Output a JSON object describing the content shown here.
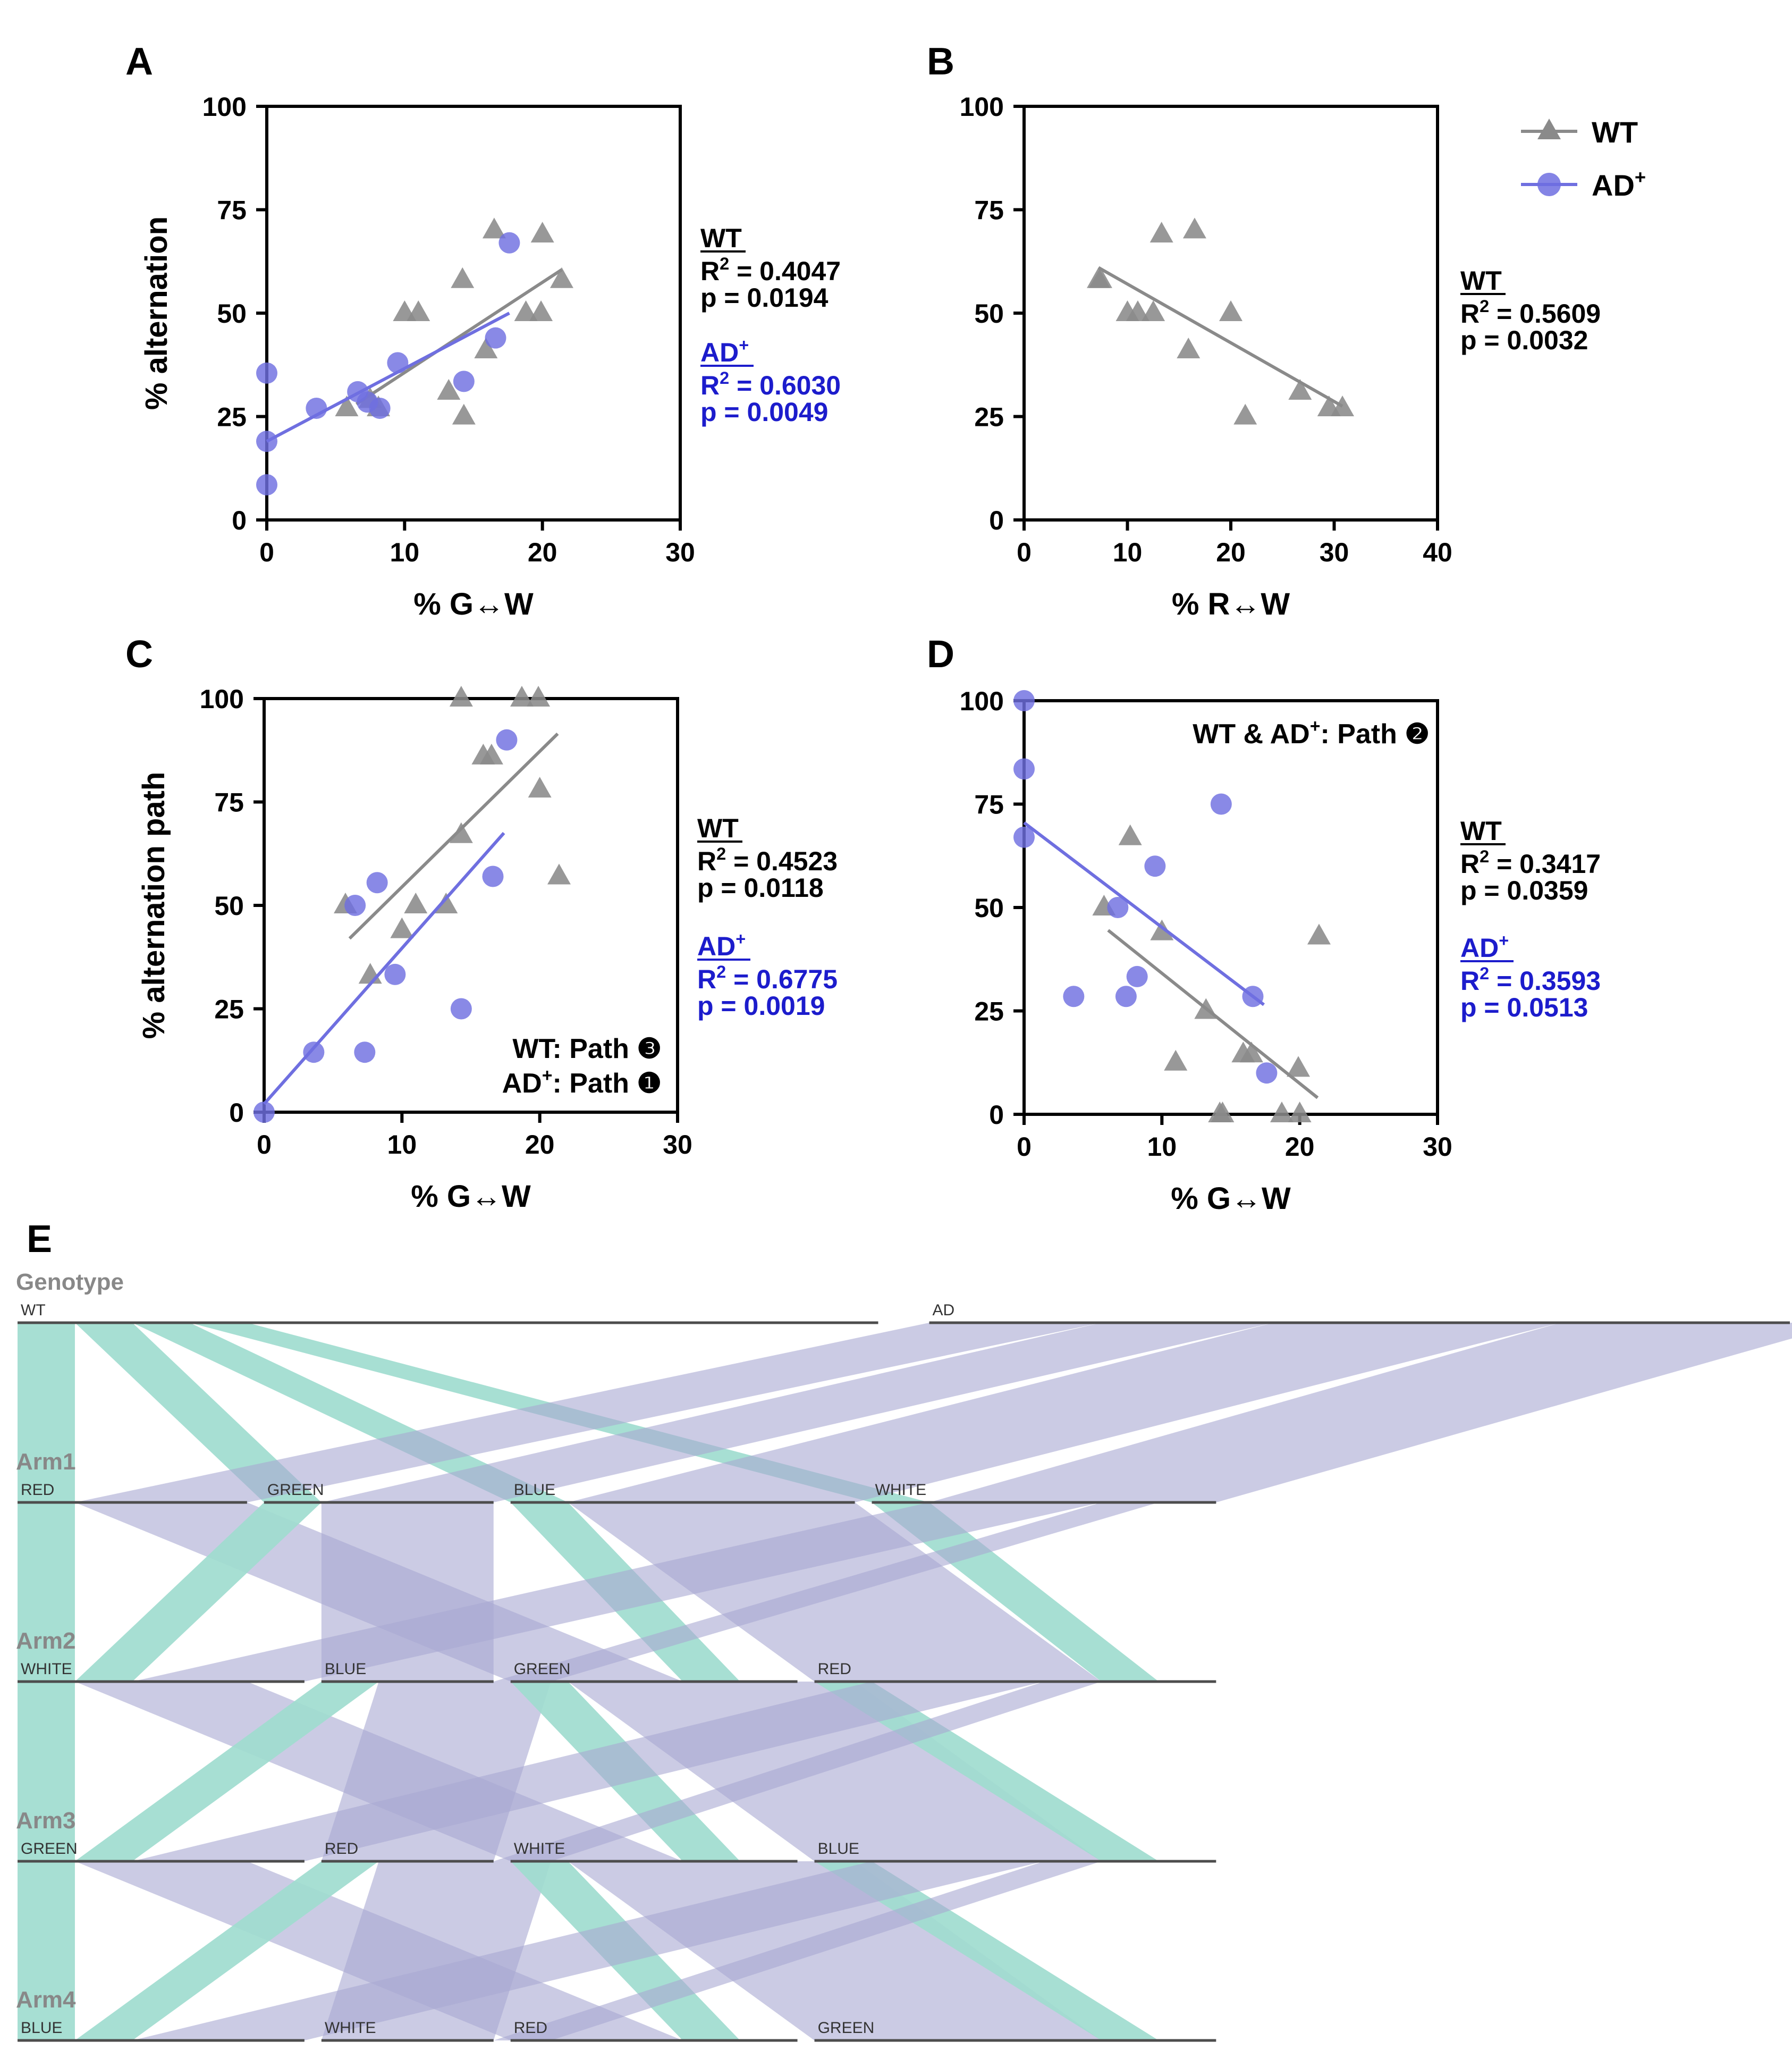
{
  "colors": {
    "wt": "#8a8a8a",
    "ad": "#6f6fe0",
    "ad_text": "#1c1ccc",
    "teal": "#9fdccf",
    "lavender": "#c6c4df",
    "lavender_flow": "#a8a8d2",
    "node_line": "#4d4d4d",
    "label_gray": "#888888"
  },
  "legend": {
    "wt": "WT",
    "ad_base": "AD",
    "ad_sup": "+"
  },
  "chart_data": [
    {
      "panel": "A",
      "type": "scatter",
      "xlabel": "% G↔W",
      "ylabel": "% alternation",
      "xlim": [
        0,
        30
      ],
      "ylim": [
        0,
        100
      ],
      "xticks": [
        0,
        10,
        20,
        30
      ],
      "yticks": [
        0,
        25,
        50,
        75,
        100
      ],
      "series": [
        {
          "name": "WT",
          "marker": "triangle",
          "x": [
            5.8,
            7.5,
            8.1,
            10.0,
            11.0,
            13.2,
            14.2,
            14.3,
            15.9,
            16.5,
            18.8,
            19.9,
            20.0,
            21.4
          ],
          "y": [
            27,
            29,
            27,
            50,
            50,
            31,
            58,
            25,
            41,
            70,
            50,
            50,
            69,
            58
          ],
          "fit": [
            [
              6.5,
              28
            ],
            [
              21.4,
              60.5
            ]
          ]
        },
        {
          "name": "AD+",
          "marker": "circle",
          "x": [
            0,
            0,
            0,
            3.6,
            6.6,
            7.3,
            8.2,
            9.5,
            14.3,
            16.6,
            17.6
          ],
          "y": [
            35.5,
            19,
            8.5,
            27,
            31,
            28.5,
            27,
            38,
            33.5,
            44,
            67
          ],
          "fit": [
            [
              0,
              19
            ],
            [
              17.6,
              50
            ]
          ]
        }
      ],
      "stats": [
        {
          "name": "WT",
          "r2": "0.4047",
          "p": "0.0194"
        },
        {
          "name": "AD+",
          "r2": "0.6030",
          "p": "0.0049"
        }
      ]
    },
    {
      "panel": "B",
      "type": "scatter",
      "xlabel": "% R↔W",
      "ylabel": "",
      "xlim": [
        0,
        40
      ],
      "ylim": [
        0,
        100
      ],
      "xticks": [
        0,
        10,
        20,
        30,
        40
      ],
      "yticks": [
        0,
        25,
        50,
        75,
        100
      ],
      "series": [
        {
          "name": "WT",
          "marker": "triangle",
          "x": [
            7.2,
            7.4,
            10.0,
            11.0,
            12.5,
            13.3,
            16.5,
            15.9,
            20.0,
            21.4,
            26.7,
            29.5,
            30.8
          ],
          "y": [
            58,
            58,
            50,
            50,
            50,
            69,
            70,
            41,
            50,
            25,
            31,
            27,
            27
          ],
          "fit": [
            [
              7.2,
              61
            ],
            [
              30.8,
              27.5
            ]
          ]
        }
      ],
      "stats": [
        {
          "name": "WT",
          "r2": "0.5609",
          "p": "0.0032"
        }
      ]
    },
    {
      "panel": "C",
      "type": "scatter",
      "xlabel": "% G↔W",
      "ylabel": "% alternation path",
      "xlim": [
        0,
        30
      ],
      "ylim": [
        0,
        100
      ],
      "xticks": [
        0,
        10,
        20,
        30
      ],
      "yticks": [
        0,
        25,
        50,
        75,
        100
      ],
      "annotations": [
        "WT: Path ❸",
        "AD+: Path ❶"
      ],
      "series": [
        {
          "name": "WT",
          "marker": "triangle",
          "x": [
            5.9,
            7.7,
            10.0,
            11.0,
            13.2,
            14.3,
            14.3,
            15.9,
            16.5,
            18.7,
            19.9,
            20.0,
            21.4
          ],
          "y": [
            50,
            33,
            44,
            50,
            50,
            67,
            100,
            86,
            86,
            100,
            100,
            78,
            57
          ],
          "fit": [
            [
              6.2,
              42
            ],
            [
              21.3,
              91.5
            ]
          ]
        },
        {
          "name": "AD+",
          "marker": "circle",
          "x": [
            0,
            3.6,
            6.6,
            7.3,
            8.2,
            9.5,
            14.3,
            16.6,
            17.6
          ],
          "y": [
            0,
            14.5,
            50,
            14.5,
            55.5,
            33.3,
            25,
            57,
            90
          ],
          "fit": [
            [
              0,
              2
            ],
            [
              17.4,
              67.5
            ]
          ]
        }
      ],
      "stats": [
        {
          "name": "WT",
          "r2": "0.4523",
          "p": "0.0118"
        },
        {
          "name": "AD+",
          "r2": "0.6775",
          "p": "0.0019"
        }
      ]
    },
    {
      "panel": "D",
      "type": "scatter",
      "xlabel": "% G↔W",
      "ylabel": "",
      "xlim": [
        0,
        30
      ],
      "ylim": [
        0,
        100
      ],
      "xticks": [
        0,
        10,
        20,
        30
      ],
      "yticks": [
        0,
        25,
        50,
        75,
        100
      ],
      "annotations": [
        "WT & AD+: Path ❷"
      ],
      "series": [
        {
          "name": "WT",
          "marker": "triangle",
          "x": [
            5.8,
            7.7,
            10.0,
            11.0,
            13.2,
            14.2,
            14.4,
            15.9,
            16.5,
            18.7,
            19.9,
            20.0,
            21.4
          ],
          "y": [
            50,
            67,
            44,
            12.5,
            25,
            0,
            0,
            14.5,
            14.5,
            0,
            11,
            0,
            43
          ],
          "fit": [
            [
              6.1,
              44.5
            ],
            [
              21.3,
              4
            ]
          ]
        },
        {
          "name": "AD+",
          "marker": "circle",
          "x": [
            0,
            0,
            0,
            3.6,
            6.8,
            7.4,
            8.2,
            9.5,
            14.3,
            16.6,
            17.6
          ],
          "y": [
            100,
            83.5,
            67,
            28.5,
            50,
            28.5,
            33.3,
            60,
            75,
            28.5,
            10
          ],
          "fit": [
            [
              0,
              70.5
            ],
            [
              17.4,
              26.5
            ]
          ]
        }
      ],
      "stats": [
        {
          "name": "WT",
          "r2": "0.3417",
          "p": "0.0359"
        },
        {
          "name": "AD+",
          "r2": "0.3593",
          "p": "0.0513"
        }
      ]
    }
  ],
  "sankey": {
    "panel": "E",
    "levels": [
      {
        "name": "Genotype",
        "nodes": [
          {
            "label": "WT",
            "size": 15
          },
          {
            "label": "AD",
            "size": 15
          }
        ]
      },
      {
        "name": "Arm1",
        "nodes": [
          {
            "label": "RED",
            "size": 4
          },
          {
            "label": "GREEN",
            "size": 4
          },
          {
            "label": "BLUE",
            "size": 6
          },
          {
            "label": "WHITE",
            "size": 6
          }
        ]
      },
      {
        "name": "Arm2",
        "nodes": [
          {
            "label": "WHITE",
            "size": 5
          },
          {
            "label": "BLUE",
            "size": 3
          },
          {
            "label": "GREEN",
            "size": 5
          },
          {
            "label": "RED",
            "size": 7
          }
        ]
      },
      {
        "name": "Arm3",
        "nodes": [
          {
            "label": "GREEN",
            "size": 5
          },
          {
            "label": "RED",
            "size": 3
          },
          {
            "label": "WHITE",
            "size": 5
          },
          {
            "label": "BLUE",
            "size": 7
          }
        ]
      },
      {
        "name": "Arm4",
        "nodes": [
          {
            "label": "BLUE",
            "size": 5
          },
          {
            "label": "WHITE",
            "size": 3
          },
          {
            "label": "RED",
            "size": 5
          },
          {
            "label": "GREEN",
            "size": 7
          }
        ]
      }
    ],
    "flows": [
      [
        {
          "from": 0,
          "to": 0,
          "value": 1,
          "group": "WT"
        },
        {
          "from": 0,
          "to": 1,
          "value": 1,
          "group": "WT"
        },
        {
          "from": 0,
          "to": 2,
          "value": 1,
          "group": "WT"
        },
        {
          "from": 0,
          "to": 3,
          "value": 1,
          "group": "WT"
        },
        {
          "from": 1,
          "to": 0,
          "value": 3,
          "group": "AD"
        },
        {
          "from": 1,
          "to": 1,
          "value": 3,
          "group": "AD"
        },
        {
          "from": 1,
          "to": 2,
          "value": 5,
          "group": "AD"
        },
        {
          "from": 1,
          "to": 3,
          "value": 5,
          "group": "AD"
        }
      ],
      [
        {
          "from": 0,
          "to": 0,
          "value": 1,
          "group": "WT"
        },
        {
          "from": 0,
          "to": 2,
          "value": 3,
          "group": "AD"
        },
        {
          "from": 1,
          "to": 0,
          "value": 1,
          "group": "WT"
        },
        {
          "from": 1,
          "to": 1,
          "value": 3,
          "group": "AD"
        },
        {
          "from": 2,
          "to": 2,
          "value": 1,
          "group": "WT"
        },
        {
          "from": 2,
          "to": 3,
          "value": 5,
          "group": "AD"
        },
        {
          "from": 3,
          "to": 3,
          "value": 1,
          "group": "WT"
        },
        {
          "from": 3,
          "to": 0,
          "value": 3,
          "group": "AD"
        },
        {
          "from": 3,
          "to": 1,
          "value": 1,
          "group": "AD"
        }
      ],
      [
        {
          "from": 0,
          "to": 0,
          "value": 1,
          "group": "WT"
        },
        {
          "from": 0,
          "to": 2,
          "value": 3,
          "group": "AD"
        },
        {
          "from": 1,
          "to": 0,
          "value": 1,
          "group": "WT"
        },
        {
          "from": 1,
          "to": 1,
          "value": 3,
          "group": "AD"
        },
        {
          "from": 2,
          "to": 2,
          "value": 1,
          "group": "WT"
        },
        {
          "from": 2,
          "to": 3,
          "value": 5,
          "group": "AD"
        },
        {
          "from": 3,
          "to": 3,
          "value": 1,
          "group": "WT"
        },
        {
          "from": 3,
          "to": 0,
          "value": 3,
          "group": "AD"
        },
        {
          "from": 3,
          "to": 1,
          "value": 1,
          "group": "AD"
        }
      ],
      [
        {
          "from": 0,
          "to": 0,
          "value": 1,
          "group": "WT"
        },
        {
          "from": 0,
          "to": 2,
          "value": 3,
          "group": "AD"
        },
        {
          "from": 1,
          "to": 0,
          "value": 1,
          "group": "WT"
        },
        {
          "from": 1,
          "to": 1,
          "value": 3,
          "group": "AD"
        },
        {
          "from": 2,
          "to": 2,
          "value": 1,
          "group": "WT"
        },
        {
          "from": 2,
          "to": 3,
          "value": 5,
          "group": "AD"
        },
        {
          "from": 3,
          "to": 3,
          "value": 1,
          "group": "WT"
        },
        {
          "from": 3,
          "to": 0,
          "value": 3,
          "group": "AD"
        },
        {
          "from": 3,
          "to": 1,
          "value": 1,
          "group": "AD"
        }
      ]
    ]
  }
}
